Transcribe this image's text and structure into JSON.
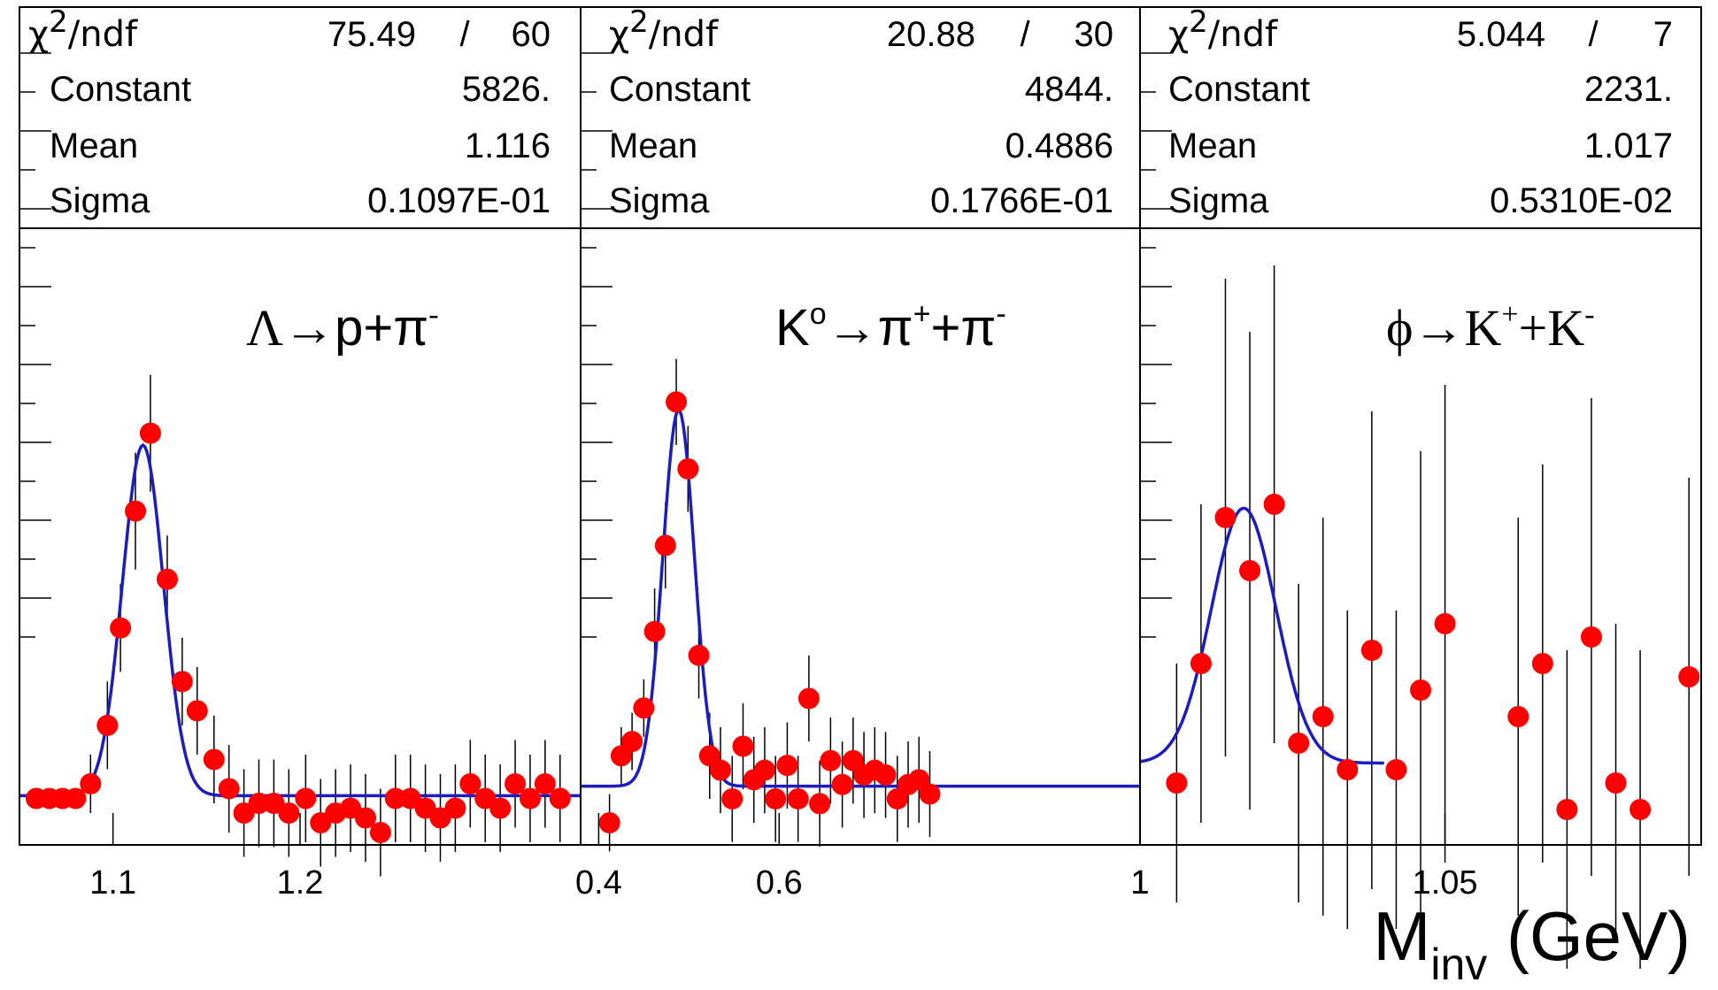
{
  "chart_data": [
    {
      "type": "scatter",
      "reaction": {
        "particle": "Λ",
        "arrow": "→",
        "products": "p+π",
        "products_sup": "-"
      },
      "stats": {
        "chi2_label": "χ",
        "chi2_sup": "2",
        "ndf_label": "/ndf",
        "chi2": "75.49",
        "slash": "/",
        "ndf": "60",
        "constant_label": "Constant",
        "constant": "5826.",
        "mean_label": "Mean",
        "mean": "1.116",
        "sigma_label": "Sigma",
        "sigma": "0.1097E-01"
      },
      "fit": {
        "constant": 5826,
        "mean": 1.116,
        "sigma": 0.01097,
        "baseline": 0.0055
      },
      "xlim": [
        1.05,
        1.35
      ],
      "ylim": [
        -0.05,
        1.04
      ],
      "xticks": [
        1.1,
        1.2
      ],
      "xtick_labels": [
        "1.1",
        "1.2"
      ],
      "x": [
        1.059,
        1.066,
        1.073,
        1.08,
        1.088,
        1.097,
        1.104,
        1.112,
        1.12,
        1.129,
        1.137,
        1.145,
        1.154,
        1.162,
        1.17,
        1.178,
        1.186,
        1.194,
        1.203,
        1.211,
        1.219,
        1.227,
        1.235,
        1.243,
        1.251,
        1.259,
        1.267,
        1.275,
        1.283,
        1.291,
        1.299,
        1.307,
        1.315,
        1.323,
        1.331,
        1.339
      ],
      "y": [
        0.0,
        0.0,
        0.0,
        0.0,
        0.03,
        0.15,
        0.35,
        0.59,
        0.75,
        0.45,
        0.24,
        0.18,
        0.08,
        0.02,
        -0.03,
        -0.01,
        -0.01,
        -0.03,
        0.0,
        -0.05,
        -0.03,
        -0.02,
        -0.04,
        -0.07,
        0.0,
        0.0,
        -0.02,
        -0.04,
        -0.02,
        0.03,
        0.0,
        -0.02,
        0.03,
        0.0,
        0.03,
        0.0
      ],
      "yerr": [
        0.005,
        0.005,
        0.005,
        0.005,
        0.02,
        0.03,
        0.03,
        0.04,
        0.04,
        0.03,
        0.03,
        0.03,
        0.03,
        0.03,
        0.03,
        0.03,
        0.03,
        0.03,
        0.03,
        0.03,
        0.03,
        0.03,
        0.03,
        0.03,
        0.03,
        0.03,
        0.03,
        0.03,
        0.03,
        0.03,
        0.03,
        0.03,
        0.03,
        0.03,
        0.03,
        0.03
      ]
    },
    {
      "type": "scatter",
      "reaction": {
        "particle": "K",
        "particle_sup": "o",
        "arrow": "→",
        "products": "π",
        "products_sup": "+",
        "products2": "+π",
        "products2_sup": "-"
      },
      "stats": {
        "chi2_label": "χ",
        "chi2_sup": "2",
        "ndf_label": "/ndf",
        "chi2": "20.88",
        "slash": "/",
        "ndf": "30",
        "constant_label": "Constant",
        "constant": "4844.",
        "mean_label": "Mean",
        "mean": "0.4886",
        "sigma_label": "Sigma",
        "sigma": "0.1766E-01"
      },
      "fit": {
        "constant": 4844,
        "mean": 0.4886,
        "sigma": 0.01766,
        "baseline": 0.0165
      },
      "xlim": [
        0.38,
        1.0
      ],
      "ylim": [
        -0.06,
        1.05
      ],
      "xticks": [
        0.4,
        0.6,
        1.0
      ],
      "xtick_labels": [
        "0.4",
        "0.6",
        "1"
      ],
      "x": [
        0.412,
        0.425,
        0.437,
        0.45,
        0.462,
        0.474,
        0.486,
        0.499,
        0.511,
        0.523,
        0.535,
        0.548,
        0.56,
        0.572,
        0.584,
        0.596,
        0.609,
        0.621,
        0.633,
        0.645,
        0.657,
        0.67,
        0.682,
        0.694,
        0.706,
        0.718,
        0.731,
        0.743,
        0.755,
        0.767
      ],
      "y": [
        -0.06,
        0.08,
        0.11,
        0.18,
        0.34,
        0.52,
        0.82,
        0.68,
        0.29,
        0.08,
        0.05,
        -0.01,
        0.1,
        0.03,
        0.05,
        -0.01,
        0.06,
        -0.01,
        0.2,
        -0.02,
        0.07,
        0.02,
        0.07,
        0.04,
        0.05,
        0.04,
        -0.01,
        0.02,
        0.03,
        0.0
      ],
      "yerr": [
        0.02,
        0.02,
        0.02,
        0.02,
        0.03,
        0.03,
        0.03,
        0.03,
        0.03,
        0.03,
        0.03,
        0.03,
        0.03,
        0.03,
        0.03,
        0.03,
        0.03,
        0.03,
        0.03,
        0.03,
        0.03,
        0.03,
        0.03,
        0.03,
        0.03,
        0.03,
        0.03,
        0.03,
        0.03,
        0.03
      ]
    },
    {
      "type": "scatter",
      "reaction": {
        "particle": "ϕ",
        "arrow": "→",
        "products": "K",
        "products_sup": "+",
        "products2": "+K",
        "products2_sup": "-"
      },
      "stats": {
        "chi2_label": "χ",
        "chi2_sup": "2",
        "ndf_label": "/ndf",
        "chi2": "5.044",
        "slash": "/",
        "ndf": "7",
        "constant_label": "Constant",
        "constant": "2231.",
        "mean_label": "Mean",
        "mean": "1.017",
        "sigma_label": "Sigma",
        "sigma": "0.5310E-02"
      },
      "fit": {
        "constant": 2231,
        "mean": 1.017,
        "sigma": 0.0053,
        "baseline": 0.005
      },
      "xlim": [
        1.0,
        1.092
      ],
      "ylim": [
        -0.04,
        0.36
      ],
      "xticks": [
        1.0,
        1.05
      ],
      "xtick_labels": [
        "1",
        "1.05"
      ],
      "x": [
        1.006,
        1.01,
        1.014,
        1.018,
        1.022,
        1.026,
        1.03,
        1.034,
        1.038,
        1.042,
        1.046,
        1.05,
        1.062,
        1.066,
        1.07,
        1.074,
        1.078,
        1.082,
        1.09
      ],
      "y": [
        -0.01,
        0.08,
        0.19,
        0.15,
        0.2,
        0.02,
        0.04,
        0.0,
        0.09,
        0.0,
        0.06,
        0.11,
        0.04,
        0.08,
        -0.03,
        0.1,
        -0.01,
        -0.03,
        0.07
      ],
      "yerr": [
        0.03,
        0.04,
        0.06,
        0.06,
        0.06,
        0.04,
        0.05,
        0.04,
        0.06,
        0.04,
        0.06,
        0.06,
        0.05,
        0.05,
        0.04,
        0.06,
        0.04,
        0.04,
        0.05
      ]
    }
  ],
  "axis": {
    "xtitle_main": "M",
    "xtitle_sub": "inv",
    "xtitle_unit": " (GeV)"
  },
  "colors": {
    "marker": "#ff0000",
    "fit": "#1c1cbf",
    "frame": "#000000"
  }
}
